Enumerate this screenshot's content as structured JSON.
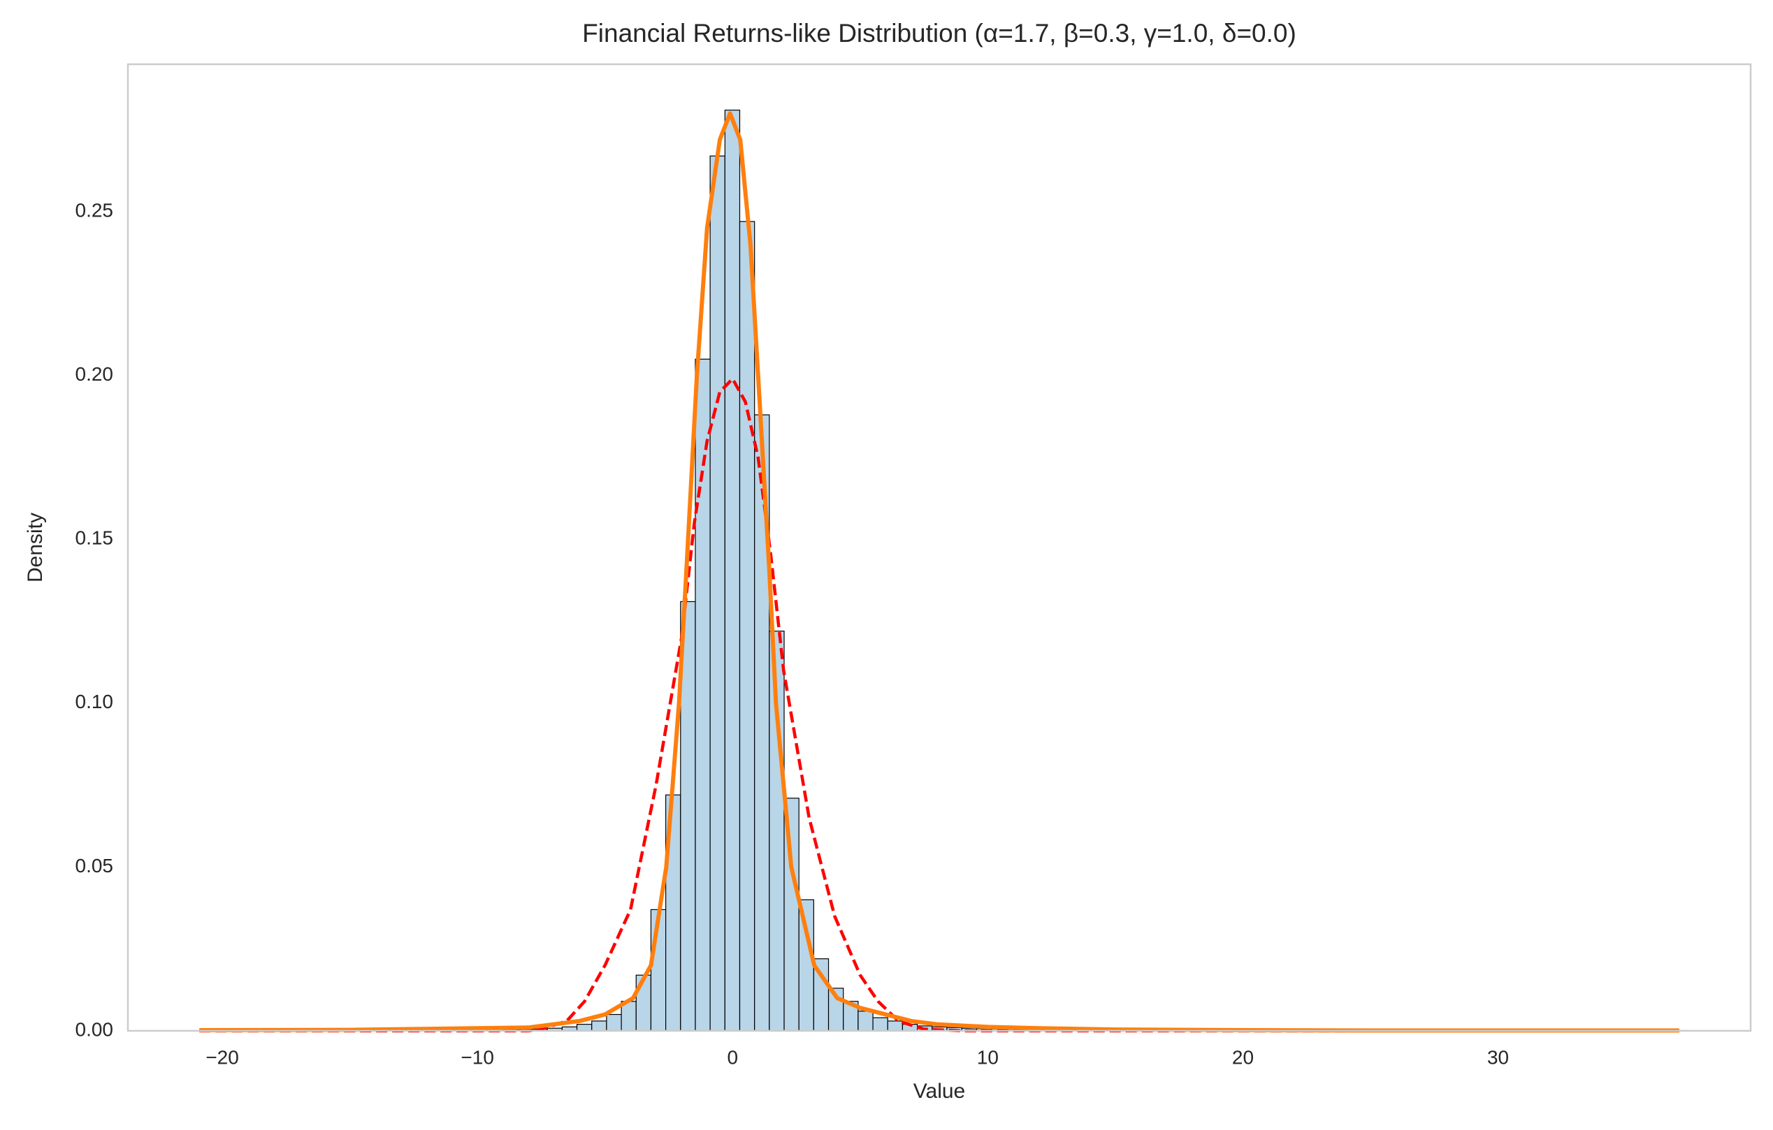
{
  "chart_data": {
    "type": "histogram",
    "title": "Financial Returns-like Distribution (α=1.7, β=0.3, γ=1.0, δ=0.0)",
    "xlabel": "Value",
    "ylabel": "Density",
    "bins": [
      -20.6,
      -20.02,
      -19.44,
      -18.86,
      -18.28,
      -17.7,
      -17.12,
      -16.54,
      -15.96,
      -15.38,
      -14.8,
      -14.22,
      -13.64,
      -13.06,
      -12.48,
      -11.9,
      -11.32,
      -10.74,
      -10.16,
      -9.58,
      -9.0,
      -8.42,
      -7.84,
      -7.26,
      -6.68,
      -6.1,
      -5.52,
      -4.94,
      -4.36,
      -3.78,
      -3.2,
      -2.62,
      -2.04,
      -1.46,
      -0.88,
      -0.3,
      0.28,
      0.86,
      1.44,
      2.02,
      2.6,
      3.18,
      3.76,
      4.34,
      4.92,
      5.5,
      6.08,
      6.66,
      7.24,
      7.82,
      8.4,
      8.98,
      9.56,
      10.14,
      10.72,
      11.3,
      11.88,
      12.46,
      13.04,
      13.62,
      14.2,
      14.78,
      15.36,
      15.94,
      16.52,
      17.1,
      17.68,
      18.26,
      18.84,
      19.42,
      20.0,
      20.58,
      21.16,
      21.74,
      22.32,
      22.9,
      23.48,
      24.06,
      24.64,
      25.22,
      25.8,
      26.38,
      26.96,
      27.54,
      28.12,
      28.7,
      29.28,
      29.86,
      30.44,
      31.02,
      31.6,
      32.18,
      32.76,
      33.34,
      33.92,
      34.5,
      35.08,
      35.66,
      36.24,
      36.82,
      37.4
    ],
    "values": [
      0.0001,
      0.0001,
      0.0001,
      0.0001,
      0.0001,
      0.0001,
      0.0001,
      0.0001,
      0.0001,
      0.0001,
      0.0001,
      0.0001,
      0.0001,
      0.0001,
      0.0001,
      0.0001,
      0.0001,
      0.0001,
      0.0001,
      0.0001,
      0.0002,
      0.0003,
      0.0005,
      0.0008,
      0.0012,
      0.002,
      0.003,
      0.005,
      0.009,
      0.017,
      0.037,
      0.072,
      0.131,
      0.205,
      0.267,
      0.281,
      0.247,
      0.188,
      0.122,
      0.071,
      0.04,
      0.022,
      0.013,
      0.009,
      0.006,
      0.004,
      0.003,
      0.002,
      0.0015,
      0.0012,
      0.001,
      0.0008,
      0.0007,
      0.0006,
      0.0005,
      0.0004,
      0.0004,
      0.0004,
      0.0004,
      0.0004,
      0.0003,
      0.0003,
      0.0003,
      0.0003,
      0.0003,
      0.0003,
      0.0003,
      0.0003,
      0.0003,
      0.0003,
      0.0002,
      0.0002,
      0.0002,
      0.0002,
      0.0002,
      0.0002,
      0.0002,
      0.0002,
      0.0002,
      0.0002,
      0.0001,
      0.0001,
      0.0001,
      0.0001,
      0.0001,
      0.0001,
      0.0001,
      0.0001,
      0.0001,
      0.0001,
      0.0001,
      0.0001,
      0.0001,
      0.0001,
      0.0001,
      0.0001,
      0.0001,
      0.0001,
      0.0001,
      0.0001
    ],
    "color": "#b9d5e8",
    "edgecolor": "#000000",
    "lines": [
      {
        "color": "#ff0000",
        "dashed": true,
        "x": [
          -20.9,
          -8,
          -7.5,
          -6.5,
          -5.8,
          -5,
          -4,
          -3,
          -2,
          -1.5,
          -1,
          -0.5,
          0,
          0.5,
          1,
          1.5,
          2,
          3,
          4,
          5,
          5.7,
          6.5,
          7.5,
          9,
          37.1
        ],
        "values": [
          0,
          0,
          0.0005,
          0.003,
          0.009,
          0.02,
          0.037,
          0.075,
          0.12,
          0.155,
          0.18,
          0.195,
          0.199,
          0.192,
          0.175,
          0.145,
          0.11,
          0.065,
          0.035,
          0.017,
          0.009,
          0.003,
          0.0005,
          0,
          0
        ]
      },
      {
        "color": "#ff7f0e",
        "dashed": false,
        "x": [
          -20.9,
          -15,
          -10,
          -8,
          -6,
          -5,
          -3.9,
          -3.2,
          -2.6,
          -2.1,
          -1.8,
          -1.4,
          -1,
          -0.5,
          -0.1,
          0.3,
          0.7,
          1,
          1.43,
          1.7,
          2.3,
          3.2,
          4.1,
          5,
          6,
          7,
          8,
          10,
          12,
          15,
          20,
          25,
          30,
          37.1
        ],
        "values": [
          0.0002,
          0.0003,
          0.0008,
          0.001,
          0.003,
          0.005,
          0.01,
          0.02,
          0.05,
          0.1,
          0.142,
          0.2,
          0.245,
          0.272,
          0.28,
          0.272,
          0.24,
          0.2,
          0.142,
          0.1,
          0.05,
          0.02,
          0.01,
          0.007,
          0.005,
          0.003,
          0.002,
          0.0012,
          0.0008,
          0.0004,
          0.0002,
          0.0001,
          0.0001,
          0.0001
        ]
      }
    ],
    "xlim": [
      -23.7,
      39.9
    ],
    "ylim": [
      0,
      0.295
    ],
    "xticks": [
      {
        "value": -20,
        "label": "−20"
      },
      {
        "value": -10,
        "label": "−10"
      },
      0,
      10,
      20,
      30
    ],
    "yticks": [
      {
        "value": 0,
        "label": "0.00"
      },
      0.05,
      {
        "value": 0.1,
        "label": "0.10"
      },
      0.15,
      {
        "value": 0.2,
        "label": "0.20"
      },
      0.25
    ],
    "grid": false
  }
}
